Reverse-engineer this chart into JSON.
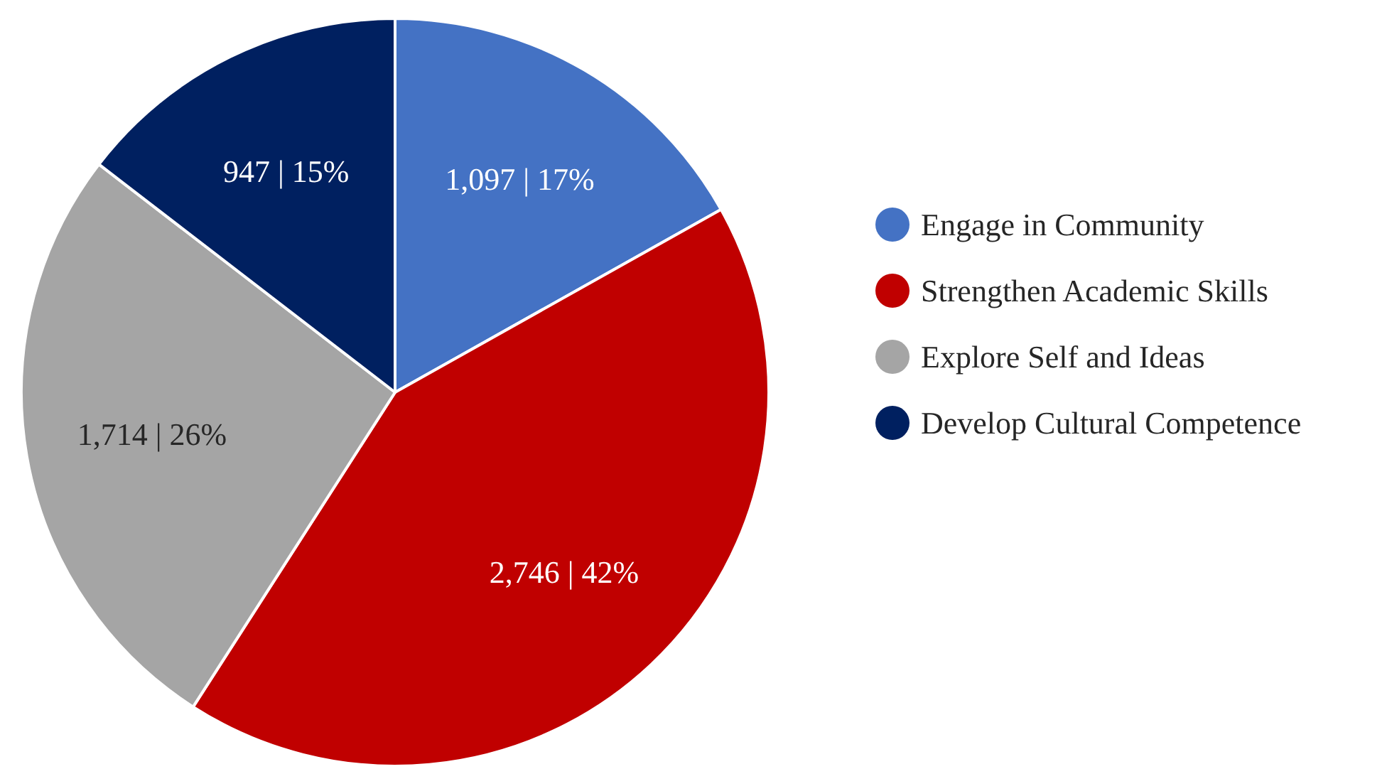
{
  "chart_data": {
    "type": "pie",
    "categories": [
      "Engage in Community",
      "Strengthen Academic Skills",
      "Explore Self and Ideas",
      "Develop Cultural Competence"
    ],
    "values": [
      1097,
      2746,
      1714,
      947
    ],
    "colors": [
      "#4472c4",
      "#c00000",
      "#a5a5a5",
      "#002060"
    ],
    "value_labels": [
      "1,097 | 17%",
      "2,746 | 42%",
      "1,714 | 26%",
      "947 | 15%"
    ],
    "legend": "right"
  }
}
